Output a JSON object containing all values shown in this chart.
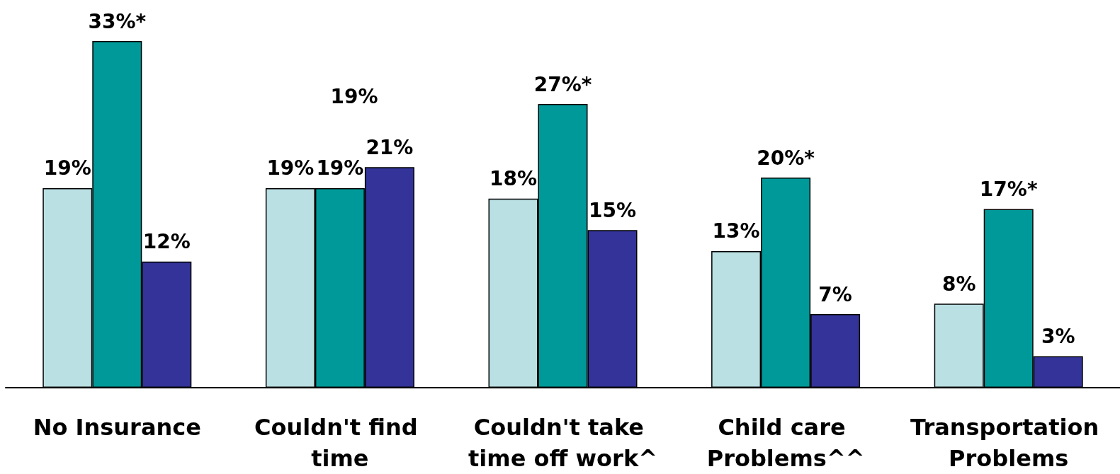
{
  "chart_data": {
    "type": "bar",
    "categories": [
      "No Insurance",
      "Couldn't find time",
      "Couldn't take time off work^",
      "Child care Problems^^",
      "Transportation Problems"
    ],
    "series": [
      {
        "color": "#bae0e3",
        "values": [
          19,
          19,
          18,
          13,
          8
        ],
        "value_labels": [
          "19%",
          "19%",
          "18%",
          "13%",
          "8%"
        ]
      },
      {
        "color": "#009999",
        "values": [
          33,
          19,
          27,
          20,
          17
        ],
        "value_labels": [
          "33%*",
          "19%",
          "27%*",
          "20%*",
          "17%*"
        ]
      },
      {
        "color": "#333399",
        "values": [
          12,
          21,
          15,
          7,
          3
        ],
        "value_labels": [
          "12%",
          "21%",
          "15%",
          "7%",
          "3%"
        ]
      }
    ],
    "annotations": [
      "19%"
    ],
    "tick_labels": "x"
  }
}
